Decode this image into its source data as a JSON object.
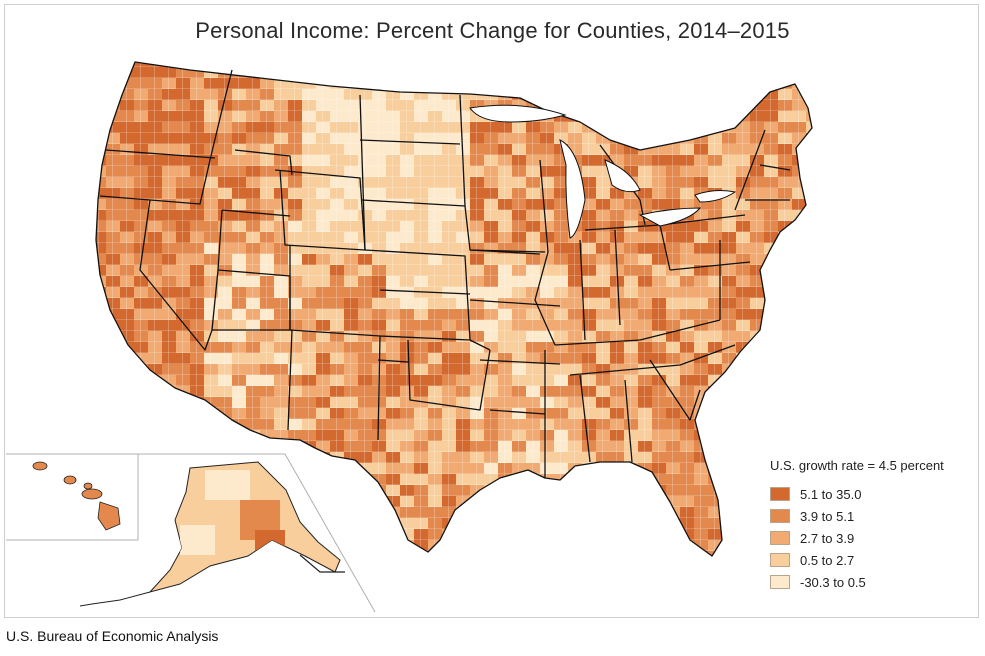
{
  "title": "Personal Income: Percent Change for Counties, 2014–2015",
  "source": "U.S. Bureau of Economic Analysis",
  "legend": {
    "title": "U.S. growth rate = 4.5 percent",
    "classes": [
      {
        "label": "5.1 to 35.0",
        "color": "#d4692f"
      },
      {
        "label": "3.9 to 5.1",
        "color": "#e4894d"
      },
      {
        "label": "2.7 to 3.9",
        "color": "#f0aa72"
      },
      {
        "label": "0.5 to 2.7",
        "color": "#f8cf9c"
      },
      {
        "label": "-30.3 to 0.5",
        "color": "#fde9cc"
      }
    ]
  },
  "colors": {
    "border_state": "#111111",
    "border_county": "#ffffff",
    "inset_line": "#b0b0b0"
  }
}
